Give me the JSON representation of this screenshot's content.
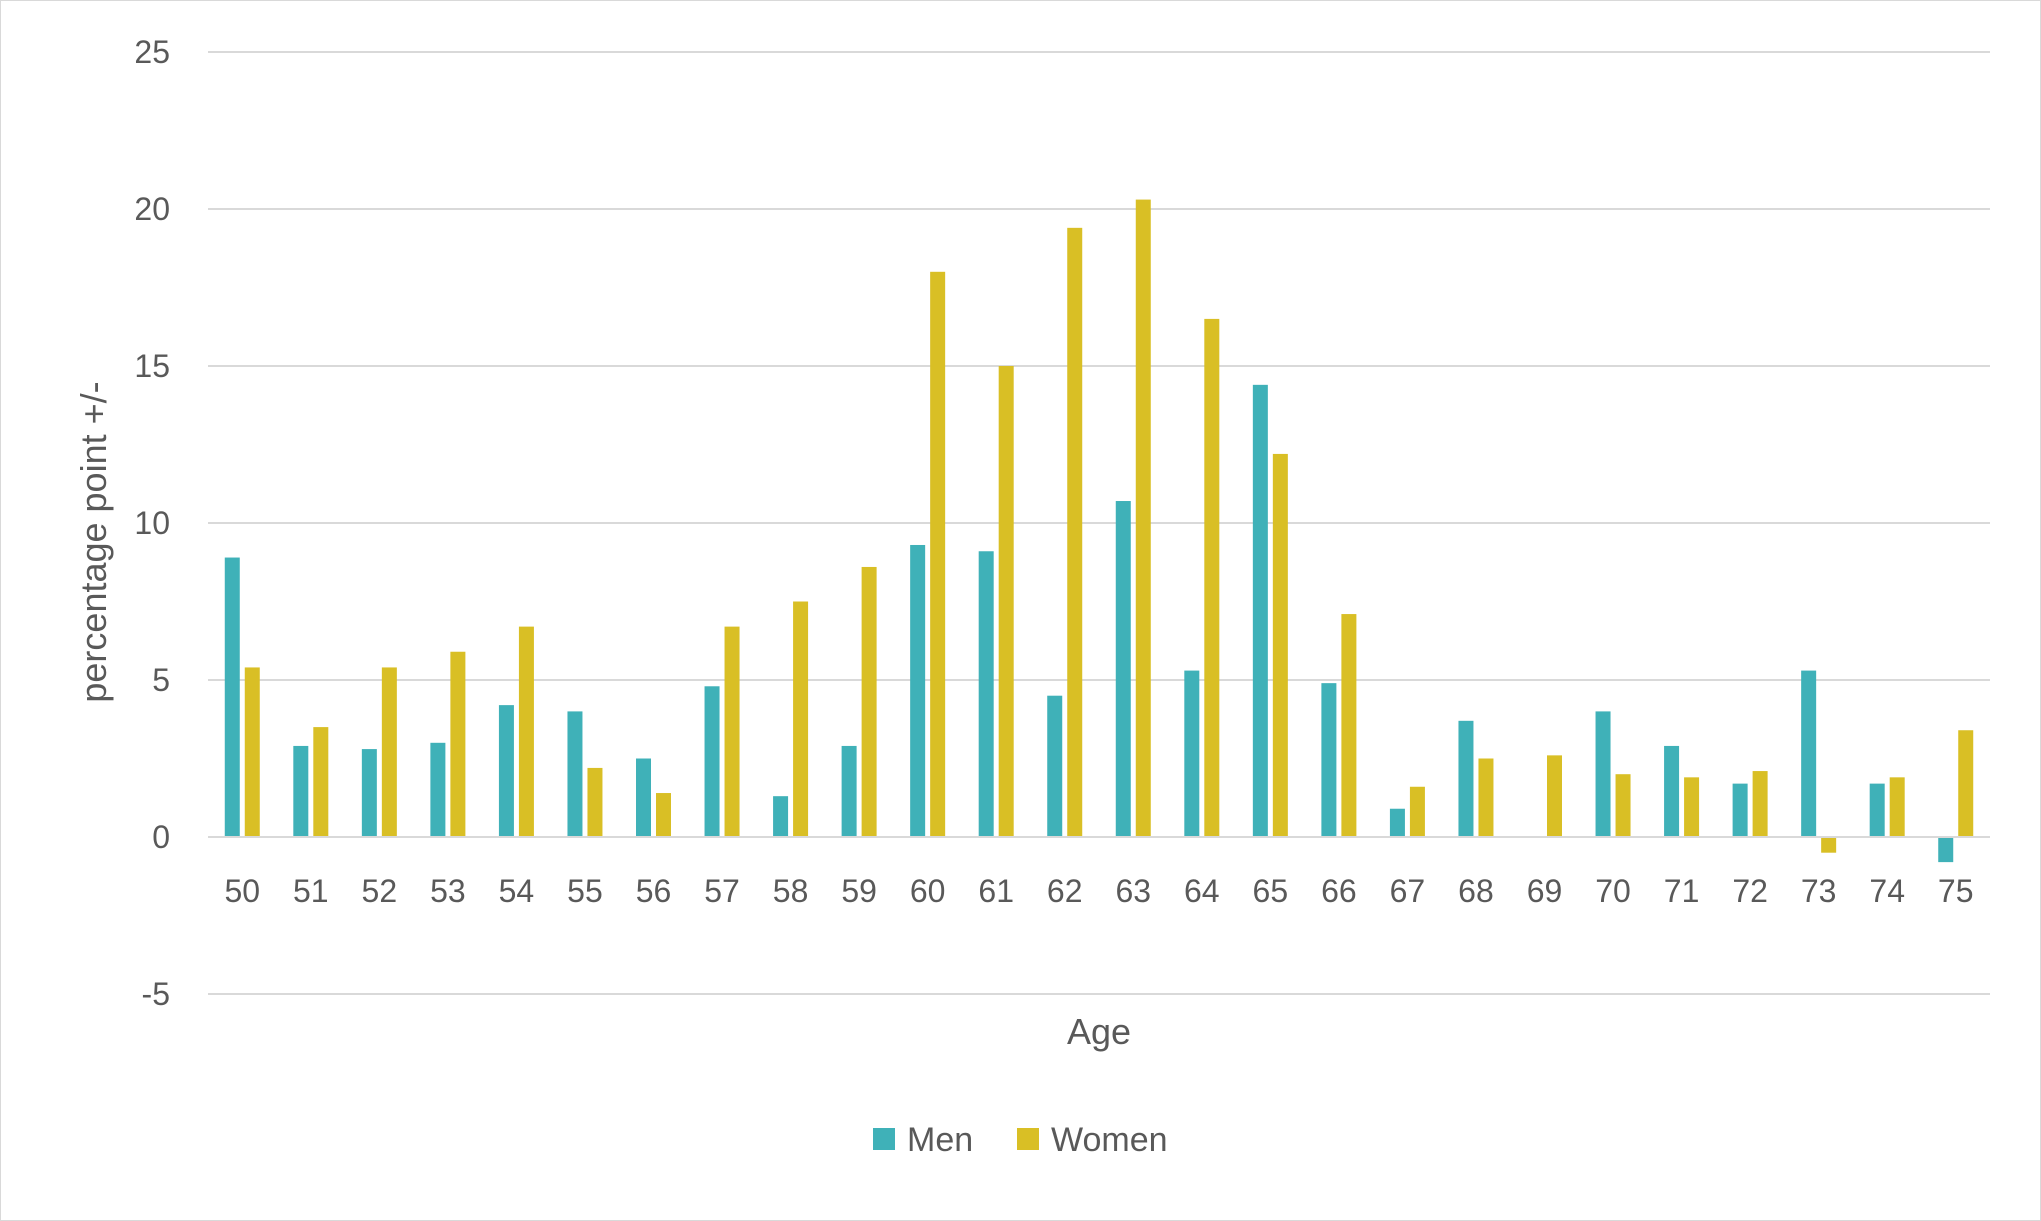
{
  "chart_data": {
    "type": "bar",
    "title": "",
    "xlabel": "Age",
    "ylabel": "percentage point +/-",
    "ylim": [
      -5,
      25
    ],
    "yticks": [
      -5,
      0,
      5,
      10,
      15,
      20,
      25
    ],
    "grid": true,
    "legend_position": "bottom",
    "categories": [
      "50",
      "51",
      "52",
      "53",
      "54",
      "55",
      "56",
      "57",
      "58",
      "59",
      "60",
      "61",
      "62",
      "63",
      "64",
      "65",
      "66",
      "67",
      "68",
      "69",
      "70",
      "71",
      "72",
      "73",
      "74",
      "75"
    ],
    "series": [
      {
        "name": "Men",
        "color": "#3fb1b8",
        "values": [
          8.9,
          2.9,
          2.8,
          3.0,
          4.2,
          4.0,
          2.5,
          4.8,
          1.3,
          2.9,
          9.3,
          9.1,
          4.5,
          10.7,
          5.3,
          14.4,
          4.9,
          0.9,
          3.7,
          0.0,
          4.0,
          2.9,
          1.7,
          5.3,
          1.7,
          -0.8
        ]
      },
      {
        "name": "Women",
        "color": "#d9bf25",
        "values": [
          5.4,
          3.5,
          5.4,
          5.9,
          6.7,
          2.2,
          1.4,
          6.7,
          7.5,
          8.6,
          18.0,
          15.0,
          19.4,
          20.3,
          16.5,
          12.2,
          7.1,
          1.6,
          2.5,
          2.6,
          2.0,
          1.9,
          2.1,
          -0.5,
          1.9,
          3.4
        ]
      }
    ]
  }
}
